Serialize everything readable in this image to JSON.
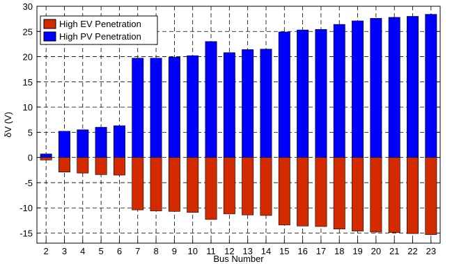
{
  "chart_data": {
    "type": "bar",
    "title": "",
    "xlabel": "Bus Number",
    "ylabel": "δV (V)",
    "ylim": [
      -17,
      30
    ],
    "yticks": [
      -15,
      -10,
      -5,
      0,
      5,
      10,
      15,
      20,
      25,
      30
    ],
    "grid": true,
    "legend_position": "top-left",
    "categories": [
      "2",
      "3",
      "4",
      "5",
      "6",
      "7",
      "8",
      "9",
      "10",
      "11",
      "12",
      "13",
      "14",
      "15",
      "16",
      "17",
      "18",
      "19",
      "20",
      "21",
      "22",
      "23"
    ],
    "series": [
      {
        "name": "High EV Penetration",
        "color": "#d42a00",
        "values": [
          -0.5,
          -2.9,
          -3.1,
          -3.4,
          -3.5,
          -10.4,
          -10.6,
          -10.7,
          -10.9,
          -12.3,
          -11.2,
          -11.4,
          -11.5,
          -13.4,
          -13.6,
          -13.7,
          -14.2,
          -14.6,
          -14.8,
          -14.9,
          -15.1,
          -15.3
        ]
      },
      {
        "name": "High PV Penetration",
        "color": "#0000ff",
        "values": [
          0.7,
          5.2,
          5.5,
          6.0,
          6.3,
          19.7,
          19.7,
          19.9,
          20.2,
          23.0,
          20.8,
          21.4,
          21.5,
          24.9,
          25.3,
          25.4,
          26.4,
          27.1,
          27.6,
          27.8,
          28.0,
          28.4
        ]
      }
    ]
  }
}
